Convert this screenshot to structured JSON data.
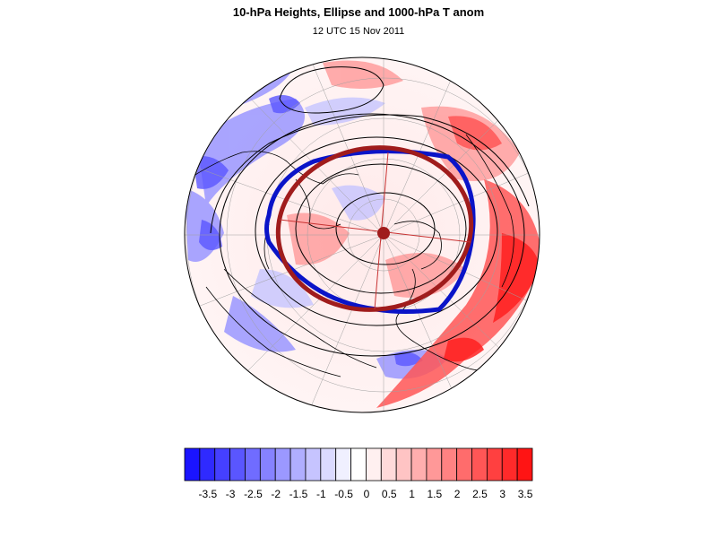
{
  "header": {
    "title": "10-hPa Heights, Ellipse and 1000-hPa T anom",
    "subtitle": "12 UTC 15 Nov 2011"
  },
  "colorbar": {
    "labels": [
      "-3.5",
      "-3",
      "-2.5",
      "-2",
      "-1.5",
      "-1",
      "-0.5",
      "0",
      "0.5",
      "1",
      "1.5",
      "2",
      "2.5",
      "3",
      "3.5"
    ],
    "colors": [
      "#1a14ff",
      "#2f2aff",
      "#4540ff",
      "#5a56ff",
      "#706cff",
      "#8682ff",
      "#9b98ff",
      "#b0aeff",
      "#c6c4ff",
      "#dbdaff",
      "#f0f0ff",
      "#ffffff",
      "#fff0f0",
      "#ffdada",
      "#ffc4c4",
      "#ffaeae",
      "#ff9898",
      "#ff8282",
      "#ff6c6c",
      "#ff5656",
      "#ff4040",
      "#ff2a2a",
      "#ff1414"
    ]
  },
  "map": {
    "projection": "north-polar-orthographic",
    "ellipse_color": "#a01c1c",
    "vortex_edge_color": "#0a14c8",
    "contour_color": "#000000"
  }
}
